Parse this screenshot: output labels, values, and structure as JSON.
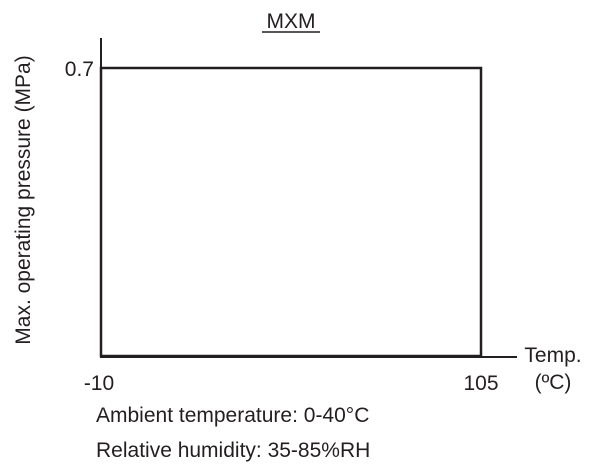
{
  "chart_data": {
    "type": "area",
    "title": "MXM",
    "xlabel": "Temp.",
    "xlabel_unit": "(ºC)",
    "ylabel": "Max. operating pressure (MPa)",
    "x_ticks": [
      "-10",
      "105"
    ],
    "y_ticks": [
      "0.7"
    ],
    "xlim": [
      -10,
      105
    ],
    "ylim": [
      0,
      0.7
    ],
    "region": {
      "x": [
        -10,
        105
      ],
      "y": [
        0,
        0.7
      ]
    },
    "grid": false,
    "legend": "none"
  },
  "notes": {
    "ambient": "Ambient temperature: 0-40°C",
    "humidity": "Relative humidity: 35-85%RH"
  },
  "colors": {
    "ink": "#231f20",
    "background": "#ffffff"
  }
}
